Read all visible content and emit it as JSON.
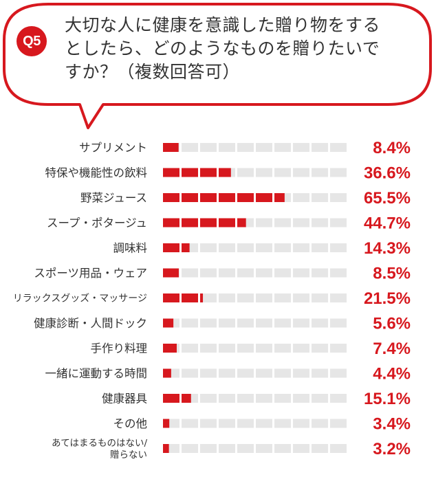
{
  "question": {
    "badge": "Q5",
    "lines": [
      "大切な人に健康を意識した贈り物をする",
      "としたら、どのようなものを贈りたいで",
      "すか？（複数回答可）"
    ]
  },
  "colors": {
    "accent": "#d7181e",
    "track": "#e6e6e6",
    "text": "#333333"
  },
  "chart_data": {
    "type": "bar",
    "orientation": "horizontal",
    "unit": "%",
    "xlim": [
      0,
      100
    ],
    "segments": 10,
    "categories": [
      [
        "サプリメント"
      ],
      [
        "特保や機能性の飲料"
      ],
      [
        "野菜ジュース"
      ],
      [
        "スープ・ポタージュ"
      ],
      [
        "調味料"
      ],
      [
        "スポーツ用品・ウェア"
      ],
      [
        "リラックスグッズ・マッサージ"
      ],
      [
        "健康診断・人間ドック"
      ],
      [
        "手作り料理"
      ],
      [
        "一緒に運動する時間"
      ],
      [
        "健康器具"
      ],
      [
        "その他"
      ],
      [
        "あてはまるものはない/",
        "贈らない"
      ]
    ],
    "values": [
      8.4,
      36.6,
      65.5,
      44.7,
      14.3,
      8.5,
      21.5,
      5.6,
      7.4,
      4.4,
      15.1,
      3.4,
      3.2
    ],
    "value_labels": [
      "8.4%",
      "36.6%",
      "65.5%",
      "44.7%",
      "14.3%",
      "8.5%",
      "21.5%",
      "5.6%",
      "7.4%",
      "4.4%",
      "15.1%",
      "3.4%",
      "3.2%"
    ]
  }
}
